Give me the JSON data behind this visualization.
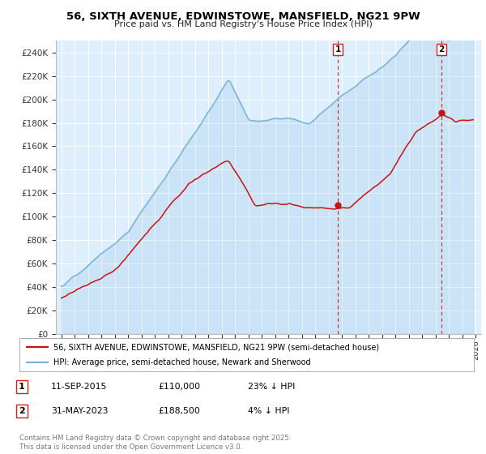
{
  "title": "56, SIXTH AVENUE, EDWINSTOWE, MANSFIELD, NG21 9PW",
  "subtitle": "Price paid vs. HM Land Registry's House Price Index (HPI)",
  "yticks": [
    0,
    20000,
    40000,
    60000,
    80000,
    100000,
    120000,
    140000,
    160000,
    180000,
    200000,
    220000,
    240000
  ],
  "ytick_labels": [
    "£0",
    "£20K",
    "£40K",
    "£60K",
    "£80K",
    "£100K",
    "£120K",
    "£140K",
    "£160K",
    "£180K",
    "£200K",
    "£220K",
    "£240K"
  ],
  "hpi_color": "#7ab3d4",
  "price_color": "#cc1111",
  "bg_color": "#ddeeff",
  "marker1_x": 2015.69,
  "marker1_y": 110000,
  "marker2_x": 2023.42,
  "marker2_y": 188500,
  "annotation1": [
    "1",
    "11-SEP-2015",
    "£110,000",
    "23% ↓ HPI"
  ],
  "annotation2": [
    "2",
    "31-MAY-2023",
    "£188,500",
    "4% ↓ HPI"
  ],
  "legend_line1": "56, SIXTH AVENUE, EDWINSTOWE, MANSFIELD, NG21 9PW (semi-detached house)",
  "legend_line2": "HPI: Average price, semi-detached house, Newark and Sherwood",
  "footer": "Contains HM Land Registry data © Crown copyright and database right 2025.\nThis data is licensed under the Open Government Licence v3.0.",
  "xmin": 1994.6,
  "xmax": 2026.4,
  "ymin": 0,
  "ymax": 250000
}
